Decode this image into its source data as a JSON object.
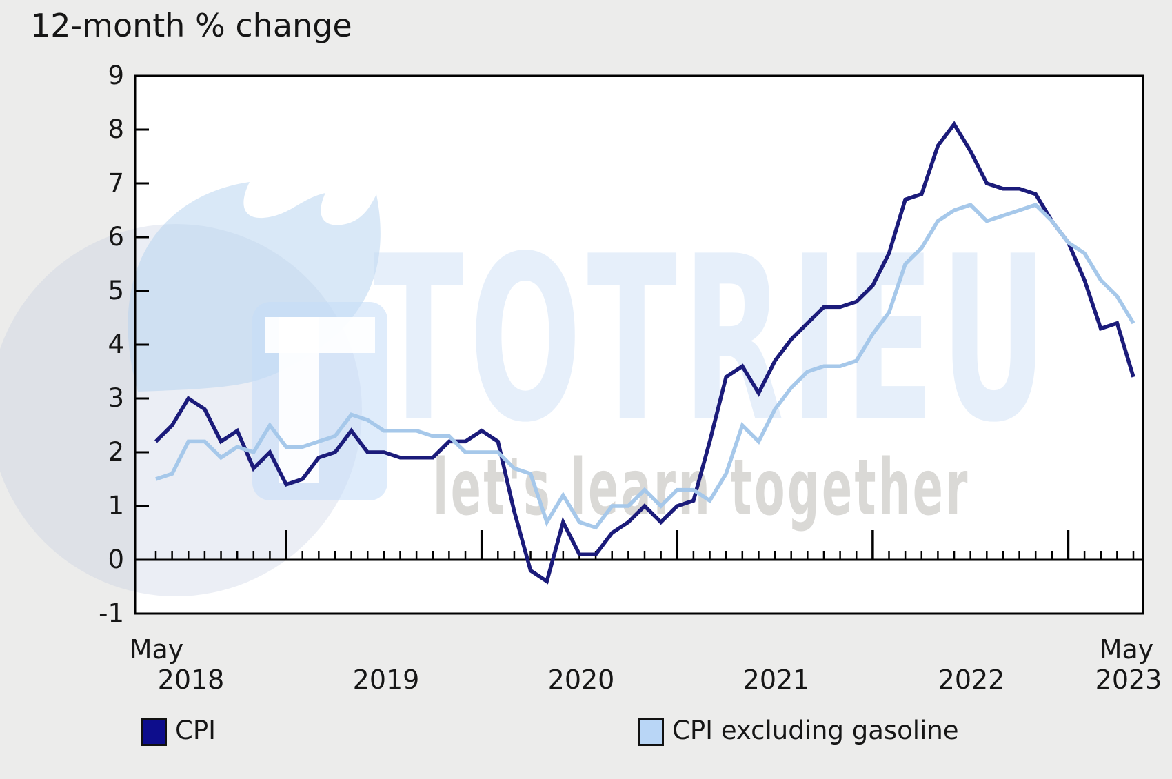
{
  "page": {
    "background": "#ECECEB"
  },
  "title": "12-month % change",
  "watermark": {
    "brand": "TOTRIEU",
    "tagline": "let's learn together",
    "logo": "flame-and-t-tile-icon"
  },
  "chart_data": {
    "type": "line",
    "title": "12-month % change",
    "frequency": "monthly",
    "start_month": "2018-05",
    "end_month": "2023-05",
    "months_total": 61,
    "x_axis": {
      "left_label_lines": [
        "May",
        "2018"
      ],
      "year_labels": [
        "2019",
        "2020",
        "2021",
        "2022"
      ],
      "right_label_lines": [
        "May",
        "2023"
      ],
      "minor_ticks": "every month",
      "major_ticks": "every January"
    },
    "y_axis": {
      "ticks": [
        9,
        8,
        7,
        6,
        5,
        4,
        3,
        2,
        1,
        0,
        -1
      ],
      "range": [
        -1,
        9
      ],
      "zero_baseline": true,
      "grid": false
    },
    "legend_position": "bottom",
    "series": [
      {
        "name": "CPI",
        "color": "#1B1B7A",
        "legend_color": "#0D0D8C",
        "values": [
          2.2,
          2.5,
          3.0,
          2.8,
          2.2,
          2.4,
          1.7,
          2.0,
          1.4,
          1.5,
          1.9,
          2.0,
          2.4,
          2.0,
          2.0,
          1.9,
          1.9,
          1.9,
          2.2,
          2.2,
          2.4,
          2.2,
          0.9,
          -0.2,
          -0.4,
          0.7,
          0.1,
          0.1,
          0.5,
          0.7,
          1.0,
          0.7,
          1.0,
          1.1,
          2.2,
          3.4,
          3.6,
          3.1,
          3.7,
          4.1,
          4.4,
          4.7,
          4.7,
          4.8,
          5.1,
          5.7,
          6.7,
          6.8,
          7.7,
          8.1,
          7.6,
          7.0,
          6.9,
          6.9,
          6.8,
          6.3,
          5.9,
          5.2,
          4.3,
          4.4,
          3.4
        ]
      },
      {
        "name": "CPI excluding gasoline",
        "color": "#A6C8EA",
        "legend_color": "#B9D6F6",
        "values": [
          1.5,
          1.6,
          2.2,
          2.2,
          1.9,
          2.1,
          2.0,
          2.5,
          2.1,
          2.1,
          2.2,
          2.3,
          2.7,
          2.6,
          2.4,
          2.4,
          2.4,
          2.3,
          2.3,
          2.0,
          2.0,
          2.0,
          1.7,
          1.6,
          0.7,
          1.2,
          0.7,
          0.6,
          1.0,
          1.0,
          1.3,
          1.0,
          1.3,
          1.3,
          1.1,
          1.6,
          2.5,
          2.2,
          2.8,
          3.2,
          3.5,
          3.6,
          3.6,
          3.7,
          4.2,
          4.6,
          5.5,
          5.8,
          6.3,
          6.5,
          6.6,
          6.3,
          6.4,
          6.5,
          6.6,
          6.3,
          5.9,
          5.7,
          5.2,
          4.9,
          4.4
        ]
      }
    ]
  }
}
